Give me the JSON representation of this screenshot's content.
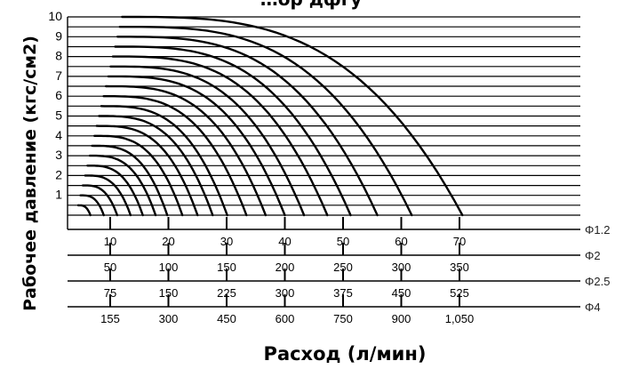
{
  "chart_data": {
    "type": "line",
    "title": "…ор         дфгу",
    "ylabel": "Рабочее давление  (кгс/см2)",
    "xlabel": "Расход (л/мин)",
    "y_ticks": [
      "1",
      "2",
      "3",
      "4",
      "5",
      "6",
      "7",
      "8",
      "9",
      "10"
    ],
    "ylim": [
      0,
      10
    ],
    "grid": "horizontal lines at every 0.5 кгс/см2",
    "x_scales": [
      {
        "name": "Φ1.2",
        "values": [
          "10",
          "20",
          "30",
          "40",
          "50",
          "60",
          "70"
        ]
      },
      {
        "name": "Φ2",
        "values": [
          "50",
          "100",
          "150",
          "200",
          "250",
          "300",
          "350"
        ]
      },
      {
        "name": "Φ2.5",
        "values": [
          "75",
          "150",
          "225",
          "300",
          "375",
          "450",
          "525"
        ]
      },
      {
        "name": "Φ4",
        "values": [
          "155",
          "300",
          "450",
          "600",
          "750",
          "900",
          "1,050"
        ]
      }
    ],
    "x_ref_scale": "Φ1.2",
    "xlim": [
      0,
      80
    ],
    "series_note": "Each curve is one nozzle pressure setting; y is pressure, x is flow on the Φ1.2 scale",
    "series": [
      {
        "start_pressure": 0.5,
        "max_flow": 6.6
      },
      {
        "start_pressure": 1.0,
        "max_flow": 8.9
      },
      {
        "start_pressure": 1.5,
        "max_flow": 11.2
      },
      {
        "start_pressure": 2.0,
        "max_flow": 13.5
      },
      {
        "start_pressure": 2.5,
        "max_flow": 15.6
      },
      {
        "start_pressure": 3.0,
        "max_flow": 17.8
      },
      {
        "start_pressure": 3.5,
        "max_flow": 19.8
      },
      {
        "start_pressure": 4.0,
        "max_flow": 22.4
      },
      {
        "start_pressure": 4.5,
        "max_flow": 25.0
      },
      {
        "start_pressure": 5.0,
        "max_flow": 27.6
      },
      {
        "start_pressure": 5.5,
        "max_flow": 30.1
      },
      {
        "start_pressure": 6.0,
        "max_flow": 33.4
      },
      {
        "start_pressure": 6.5,
        "max_flow": 36.7
      },
      {
        "start_pressure": 7.0,
        "max_flow": 40.0
      },
      {
        "start_pressure": 7.5,
        "max_flow": 43.3
      },
      {
        "start_pressure": 8.0,
        "max_flow": 47.3
      },
      {
        "start_pressure": 8.5,
        "max_flow": 51.3
      },
      {
        "start_pressure": 9.0,
        "max_flow": 55.9
      },
      {
        "start_pressure": 9.5,
        "max_flow": 61.8
      },
      {
        "start_pressure": 10.0,
        "max_flow": 70.5
      }
    ]
  }
}
